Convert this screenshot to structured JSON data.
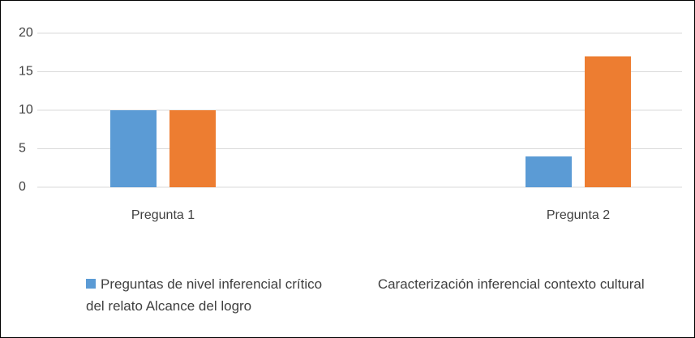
{
  "chart_data": {
    "type": "bar",
    "categories": [
      "Pregunta 1",
      "Pregunta 2"
    ],
    "series": [
      {
        "name": "Preguntas de nivel inferencial crítico",
        "color": "#5b9bd5",
        "values": [
          10,
          4
        ]
      },
      {
        "name": "Caracterización inferencial contexto cultural del relato Alcance del logro",
        "color": "#ed7d31",
        "values": [
          10,
          17
        ]
      }
    ],
    "ylim": [
      0,
      20
    ],
    "yticks": [
      0,
      5,
      10,
      15,
      20
    ],
    "grid": true,
    "legend": "bottom"
  }
}
